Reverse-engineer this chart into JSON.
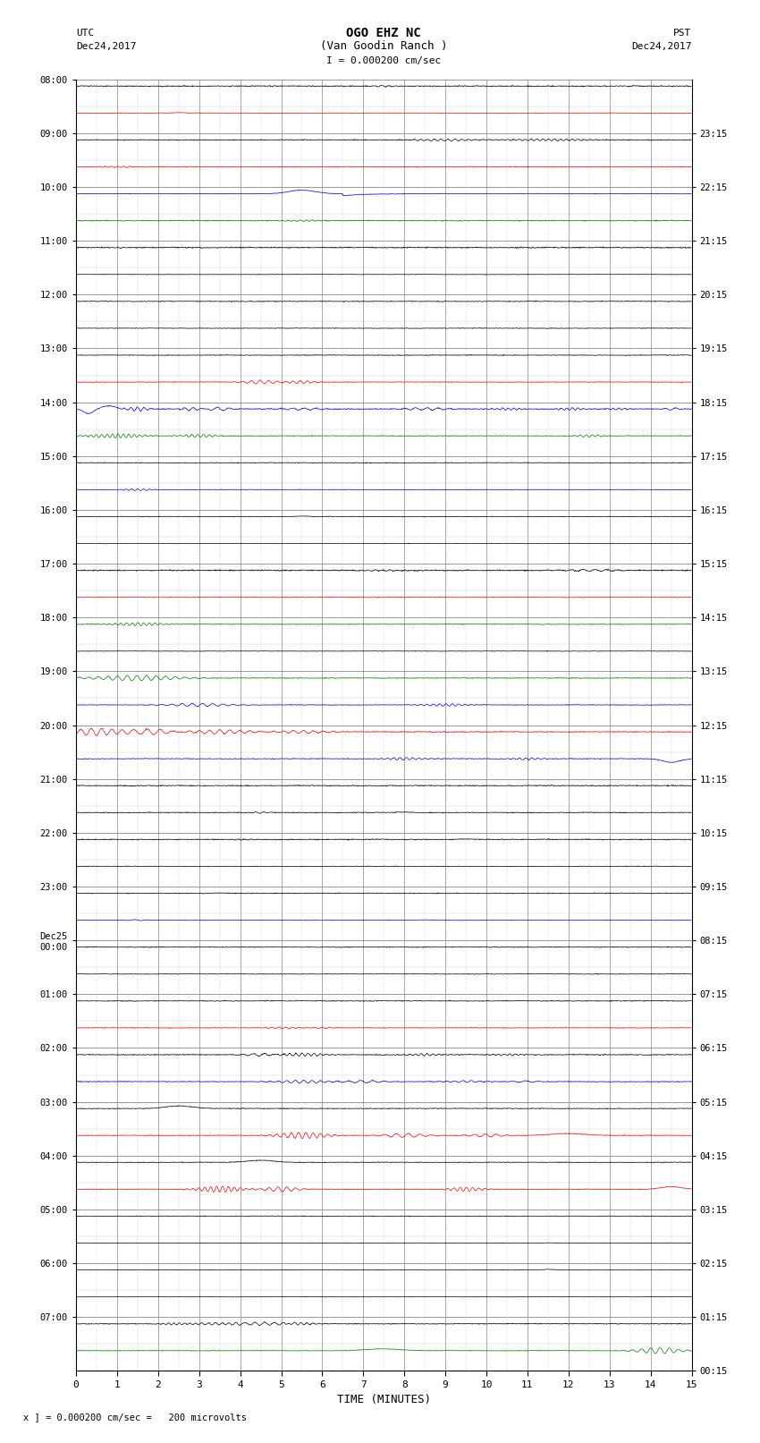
{
  "title_line1": "OGO EHZ NC",
  "title_line2": "(Van Goodin Ranch )",
  "title_line3": "I = 0.000200 cm/sec",
  "left_label_top": "UTC",
  "left_label_date": "Dec24,2017",
  "right_label_top": "PST",
  "right_label_date": "Dec24,2017",
  "footer": "x ] = 0.000200 cm/sec =   200 microvolts",
  "xlabel": "TIME (MINUTES)",
  "utc_times": [
    "08:00",
    "09:00",
    "10:00",
    "11:00",
    "12:00",
    "13:00",
    "14:00",
    "15:00",
    "16:00",
    "17:00",
    "18:00",
    "19:00",
    "20:00",
    "21:00",
    "22:00",
    "23:00",
    "Dec25\n00:00",
    "01:00",
    "02:00",
    "03:00",
    "04:00",
    "05:00",
    "06:00",
    "07:00"
  ],
  "pst_times": [
    "00:15",
    "01:15",
    "02:15",
    "03:15",
    "04:15",
    "05:15",
    "06:15",
    "07:15",
    "08:15",
    "09:15",
    "10:15",
    "11:15",
    "12:15",
    "13:15",
    "14:15",
    "15:15",
    "16:15",
    "17:15",
    "18:15",
    "19:15",
    "20:15",
    "21:15",
    "22:15",
    "23:15"
  ],
  "num_hours": 24,
  "sub_rows_per_hour": 2,
  "x_ticks": [
    0,
    1,
    2,
    3,
    4,
    5,
    6,
    7,
    8,
    9,
    10,
    11,
    12,
    13,
    14,
    15
  ],
  "bg_color": "#ffffff",
  "grid_color": "#888888",
  "grid_minor_color": "#cccccc",
  "seed": 42,
  "noise_amp": 0.03,
  "trace_linewidth": 0.5
}
